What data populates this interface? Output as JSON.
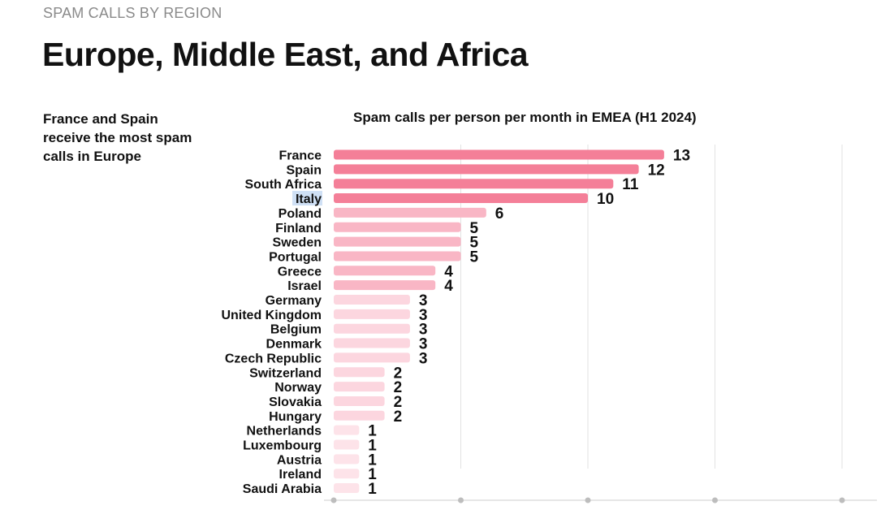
{
  "header": {
    "kicker": "SPAM CALLS BY REGION",
    "title": "Europe, Middle East, and Africa"
  },
  "side_note": "France and Spain receive the most spam calls in Europe",
  "colors": {
    "tier_high": "#f47f98",
    "tier_mid": "#f9b6c5",
    "tier_low": "#fcd6df",
    "tier_lowest": "#fde3e9",
    "gridline": "#e2e2e2",
    "axis": "#cccccc",
    "highlight": "#cfe0f5"
  },
  "chart_data": {
    "type": "bar",
    "orientation": "horizontal",
    "title": "Spam calls per person per month in EMEA (H1 2024)",
    "categories": [
      "France",
      "Spain",
      "South Africa",
      "Italy",
      "Poland",
      "Finland",
      "Sweden",
      "Portugal",
      "Greece",
      "Israel",
      "Germany",
      "United Kingdom",
      "Belgium",
      "Denmark",
      "Czech Republic",
      "Switzerland",
      "Norway",
      "Slovakia",
      "Hungary",
      "Netherlands",
      "Luxembourg",
      "Austria",
      "Ireland",
      "Saudi Arabia"
    ],
    "values": [
      13,
      12,
      11,
      10,
      6,
      5,
      5,
      5,
      4,
      4,
      3,
      3,
      3,
      3,
      3,
      2,
      2,
      2,
      2,
      1,
      1,
      1,
      1,
      1
    ],
    "xlim": [
      0,
      20
    ],
    "x_grid": [
      0,
      5,
      10,
      15,
      20
    ],
    "highlighted_category": "Italy",
    "grid": true,
    "legend": "none"
  }
}
